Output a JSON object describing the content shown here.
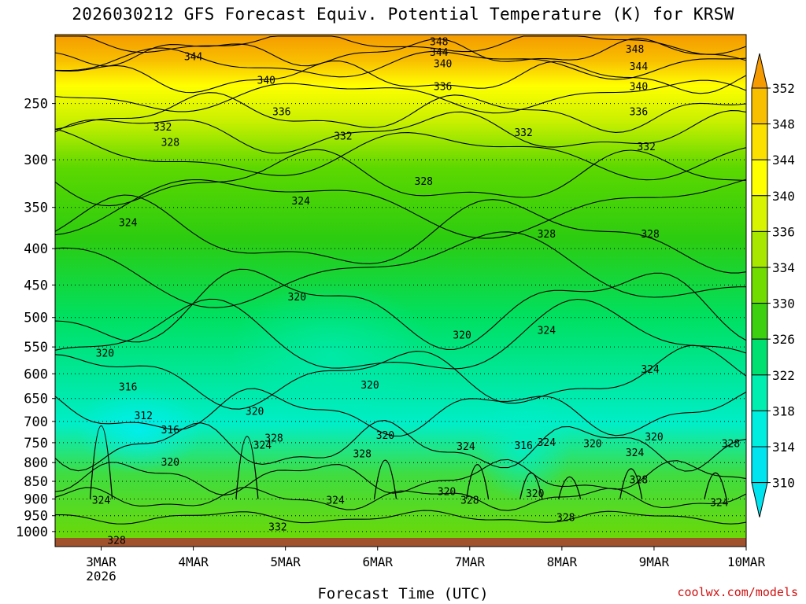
{
  "chart_data": {
    "type": "heatmap",
    "title": "2026030212 GFS Forecast Equiv. Potential Temperature (K) for KRSW",
    "xlabel": "Forecast Time (UTC)",
    "ylabel": "",
    "credit": "coolwx.com/models",
    "y_scale": "log-pressure",
    "y_ticks": [
      "250",
      "300",
      "350",
      "400",
      "450",
      "500",
      "550",
      "600",
      "650",
      "700",
      "750",
      "800",
      "850",
      "900",
      "950",
      "1000"
    ],
    "y_range_hPa": [
      200,
      1050
    ],
    "x_ticks": [
      "3MAR",
      "4MAR",
      "5MAR",
      "6MAR",
      "7MAR",
      "8MAR",
      "9MAR",
      "10MAR"
    ],
    "x_tick_sublabel": "2026",
    "x_range_hours": [
      -12,
      168
    ],
    "grid": "dotted horizontal at pressure ticks",
    "colorbar": {
      "levels": [
        "352",
        "348",
        "344",
        "340",
        "336",
        "334",
        "330",
        "326",
        "322",
        "318",
        "314",
        "310"
      ],
      "colors": [
        "#f59a00",
        "#f8be00",
        "#fbe000",
        "#ffff00",
        "#d8f400",
        "#a8e800",
        "#70dc00",
        "#3cd010",
        "#00e070",
        "#00eeb0",
        "#00eee0",
        "#00e4f0"
      ]
    },
    "contour_labels": [
      {
        "text": "348",
        "hour": 88,
        "hPa": 205
      },
      {
        "text": "344",
        "hour": 88,
        "hPa": 212
      },
      {
        "text": "340",
        "hour": 89,
        "hPa": 220
      },
      {
        "text": "336",
        "hour": 89,
        "hPa": 237
      },
      {
        "text": "348",
        "hour": 139,
        "hPa": 210
      },
      {
        "text": "344",
        "hour": 140,
        "hPa": 222
      },
      {
        "text": "340",
        "hour": 140,
        "hPa": 237
      },
      {
        "text": "336",
        "hour": 140,
        "hPa": 257
      },
      {
        "text": "344",
        "hour": 24,
        "hPa": 215
      },
      {
        "text": "340",
        "hour": 43,
        "hPa": 232
      },
      {
        "text": "336",
        "hour": 47,
        "hPa": 257
      },
      {
        "text": "332",
        "hour": 16,
        "hPa": 270
      },
      {
        "text": "328",
        "hour": 18,
        "hPa": 284
      },
      {
        "text": "332",
        "hour": 63,
        "hPa": 278
      },
      {
        "text": "332",
        "hour": 110,
        "hPa": 275
      },
      {
        "text": "332",
        "hour": 142,
        "hPa": 288
      },
      {
        "text": "328",
        "hour": 84,
        "hPa": 322
      },
      {
        "text": "324",
        "hour": 52,
        "hPa": 343
      },
      {
        "text": "324",
        "hour": 7,
        "hPa": 368
      },
      {
        "text": "328",
        "hour": 116,
        "hPa": 382
      },
      {
        "text": "328",
        "hour": 143,
        "hPa": 382
      },
      {
        "text": "320",
        "hour": 51,
        "hPa": 468
      },
      {
        "text": "320",
        "hour": 1,
        "hPa": 562
      },
      {
        "text": "320",
        "hour": 94,
        "hPa": 530
      },
      {
        "text": "324",
        "hour": 116,
        "hPa": 522
      },
      {
        "text": "324",
        "hour": 143,
        "hPa": 592
      },
      {
        "text": "316",
        "hour": 7,
        "hPa": 627
      },
      {
        "text": "320",
        "hour": 70,
        "hPa": 623
      },
      {
        "text": "312",
        "hour": 11,
        "hPa": 688
      },
      {
        "text": "316",
        "hour": 18,
        "hPa": 720
      },
      {
        "text": "320",
        "hour": 40,
        "hPa": 678
      },
      {
        "text": "320",
        "hour": 74,
        "hPa": 733
      },
      {
        "text": "328",
        "hour": 45,
        "hPa": 740
      },
      {
        "text": "324",
        "hour": 42,
        "hPa": 757
      },
      {
        "text": "328",
        "hour": 68,
        "hPa": 778
      },
      {
        "text": "324",
        "hour": 95,
        "hPa": 760
      },
      {
        "text": "316",
        "hour": 110,
        "hPa": 758
      },
      {
        "text": "324",
        "hour": 116,
        "hPa": 750
      },
      {
        "text": "320",
        "hour": 128,
        "hPa": 753
      },
      {
        "text": "320",
        "hour": 144,
        "hPa": 737
      },
      {
        "text": "324",
        "hour": 139,
        "hPa": 775
      },
      {
        "text": "328",
        "hour": 164,
        "hPa": 753
      },
      {
        "text": "320",
        "hour": 18,
        "hPa": 800
      },
      {
        "text": "328",
        "hour": 140,
        "hPa": 847
      },
      {
        "text": "320",
        "hour": 90,
        "hPa": 880
      },
      {
        "text": "320",
        "hour": 113,
        "hPa": 885
      },
      {
        "text": "324",
        "hour": 0,
        "hPa": 905
      },
      {
        "text": "324",
        "hour": 61,
        "hPa": 905
      },
      {
        "text": "328",
        "hour": 96,
        "hPa": 905
      },
      {
        "text": "324",
        "hour": 161,
        "hPa": 912
      },
      {
        "text": "328",
        "hour": 121,
        "hPa": 957
      },
      {
        "text": "332",
        "hour": 46,
        "hPa": 987
      },
      {
        "text": "328",
        "hour": 4,
        "hPa": 1030
      }
    ]
  }
}
